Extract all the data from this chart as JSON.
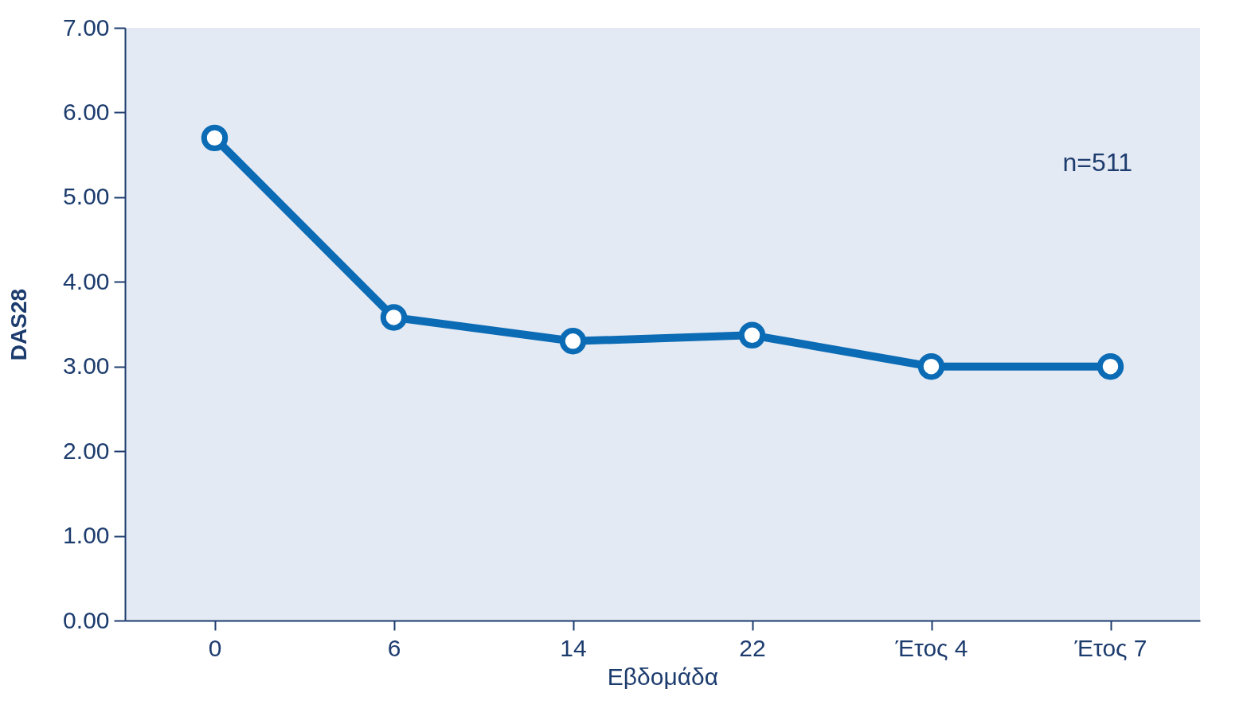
{
  "chart_data": {
    "type": "line",
    "xlabel": "Εβδομάδα",
    "ylabel": "DAS28",
    "categories": [
      "0",
      "6",
      "14",
      "22",
      "Έτος 4",
      "Έτος 7"
    ],
    "series": [
      {
        "color": "#0b6bb5",
        "values": [
          5.7,
          3.58,
          3.3,
          3.37,
          3.0,
          3.0
        ]
      }
    ],
    "ylim": [
      0,
      7
    ],
    "yticks": [
      {
        "value": 0,
        "label": "0.00"
      },
      {
        "value": 1,
        "label": "1.00"
      },
      {
        "value": 2,
        "label": "2.00"
      },
      {
        "value": 3,
        "label": "3.00"
      },
      {
        "value": 4,
        "label": "4.00"
      },
      {
        "value": 5,
        "label": "5.00"
      },
      {
        "value": 6,
        "label": "6.00"
      },
      {
        "value": 7,
        "label": "7.00"
      }
    ],
    "marker": "circle",
    "line_style": "solid",
    "grid": false,
    "annotations": [
      "n=511"
    ]
  }
}
